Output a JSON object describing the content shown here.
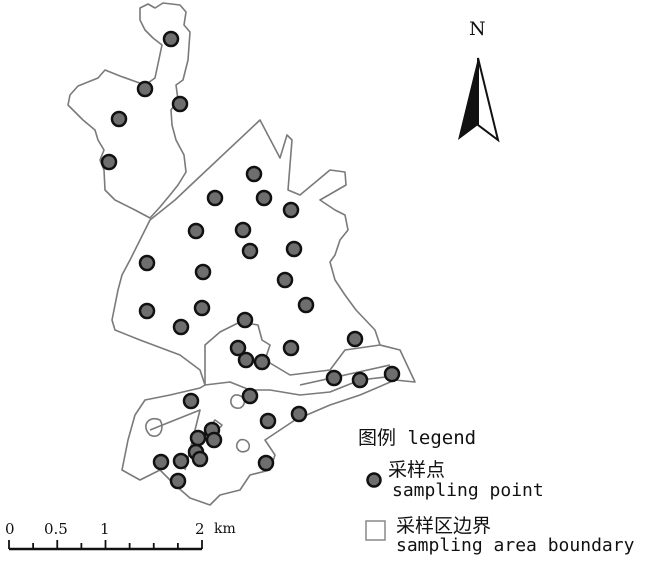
{
  "north_arrow": {
    "label": "N"
  },
  "scale_bar": {
    "ticks": [
      "0",
      "0.5",
      "1",
      "2"
    ],
    "unit": "km"
  },
  "legend": {
    "title": "图例 legend",
    "items": [
      {
        "label_cn": "采样点",
        "label_en": "sampling point",
        "symbol": "circle",
        "fill": "#6e6e6e",
        "stroke": "#111111"
      },
      {
        "label_cn": "采样区边界",
        "label_en": "sampling area boundary",
        "symbol": "square-outline",
        "stroke": "#888888"
      }
    ]
  },
  "colors": {
    "boundary": "#7a7a7a",
    "point_fill": "#6e6e6e",
    "point_stroke": "#111111"
  }
}
